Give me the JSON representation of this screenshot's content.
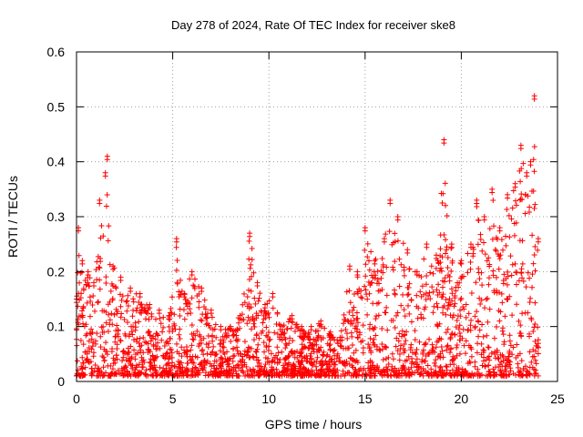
{
  "chart_data": {
    "type": "scatter",
    "title": "Day 278 of 2024, Rate Of TEC Index for receiver ske8",
    "xlabel": "GPS time / hours",
    "ylabel": "ROTI / TECUs",
    "xlim": [
      0,
      25
    ],
    "ylim": [
      0,
      0.6
    ],
    "x_ticks": [
      0,
      5,
      10,
      15,
      20,
      25
    ],
    "x_tick_labels": [
      "0",
      "5",
      "10",
      "15",
      "20",
      "25"
    ],
    "y_ticks": [
      0,
      0.1,
      0.2,
      0.3,
      0.4,
      0.5,
      0.6
    ],
    "y_tick_labels": [
      "0",
      "0.1",
      "0.2",
      "0.3",
      "0.4",
      "0.5",
      "0.6"
    ],
    "grid": true,
    "marker": "+",
    "marker_color": "#ff0000",
    "series": [
      {
        "name": "ROTI",
        "note": "dense point cloud; envelope values (hours, TECU) sampled from figure",
        "x": [
          0.0,
          0.1,
          0.3,
          0.6,
          0.9,
          1.2,
          1.5,
          1.6,
          1.9,
          2.3,
          2.8,
          3.3,
          3.8,
          4.3,
          4.8,
          5.2,
          5.6,
          6.0,
          6.5,
          7.0,
          7.5,
          8.0,
          8.5,
          9.0,
          9.4,
          9.8,
          10.2,
          10.7,
          11.2,
          11.7,
          12.2,
          12.7,
          13.2,
          13.7,
          14.2,
          14.6,
          15.0,
          15.5,
          16.0,
          16.3,
          16.7,
          17.2,
          17.7,
          18.2,
          18.7,
          19.1,
          19.5,
          20.0,
          20.5,
          20.8,
          21.2,
          21.6,
          22.0,
          22.4,
          22.8,
          23.1,
          23.4,
          23.6,
          23.8,
          24.0
        ],
        "y": [
          0.15,
          0.28,
          0.22,
          0.2,
          0.18,
          0.33,
          0.38,
          0.41,
          0.21,
          0.19,
          0.17,
          0.16,
          0.14,
          0.13,
          0.12,
          0.26,
          0.16,
          0.2,
          0.17,
          0.13,
          0.1,
          0.1,
          0.12,
          0.27,
          0.18,
          0.14,
          0.16,
          0.1,
          0.12,
          0.1,
          0.1,
          0.11,
          0.09,
          0.08,
          0.21,
          0.2,
          0.28,
          0.22,
          0.26,
          0.33,
          0.3,
          0.24,
          0.2,
          0.25,
          0.23,
          0.44,
          0.25,
          0.22,
          0.25,
          0.33,
          0.3,
          0.35,
          0.28,
          0.34,
          0.36,
          0.43,
          0.38,
          0.4,
          0.52,
          0.26
        ]
      }
    ]
  }
}
